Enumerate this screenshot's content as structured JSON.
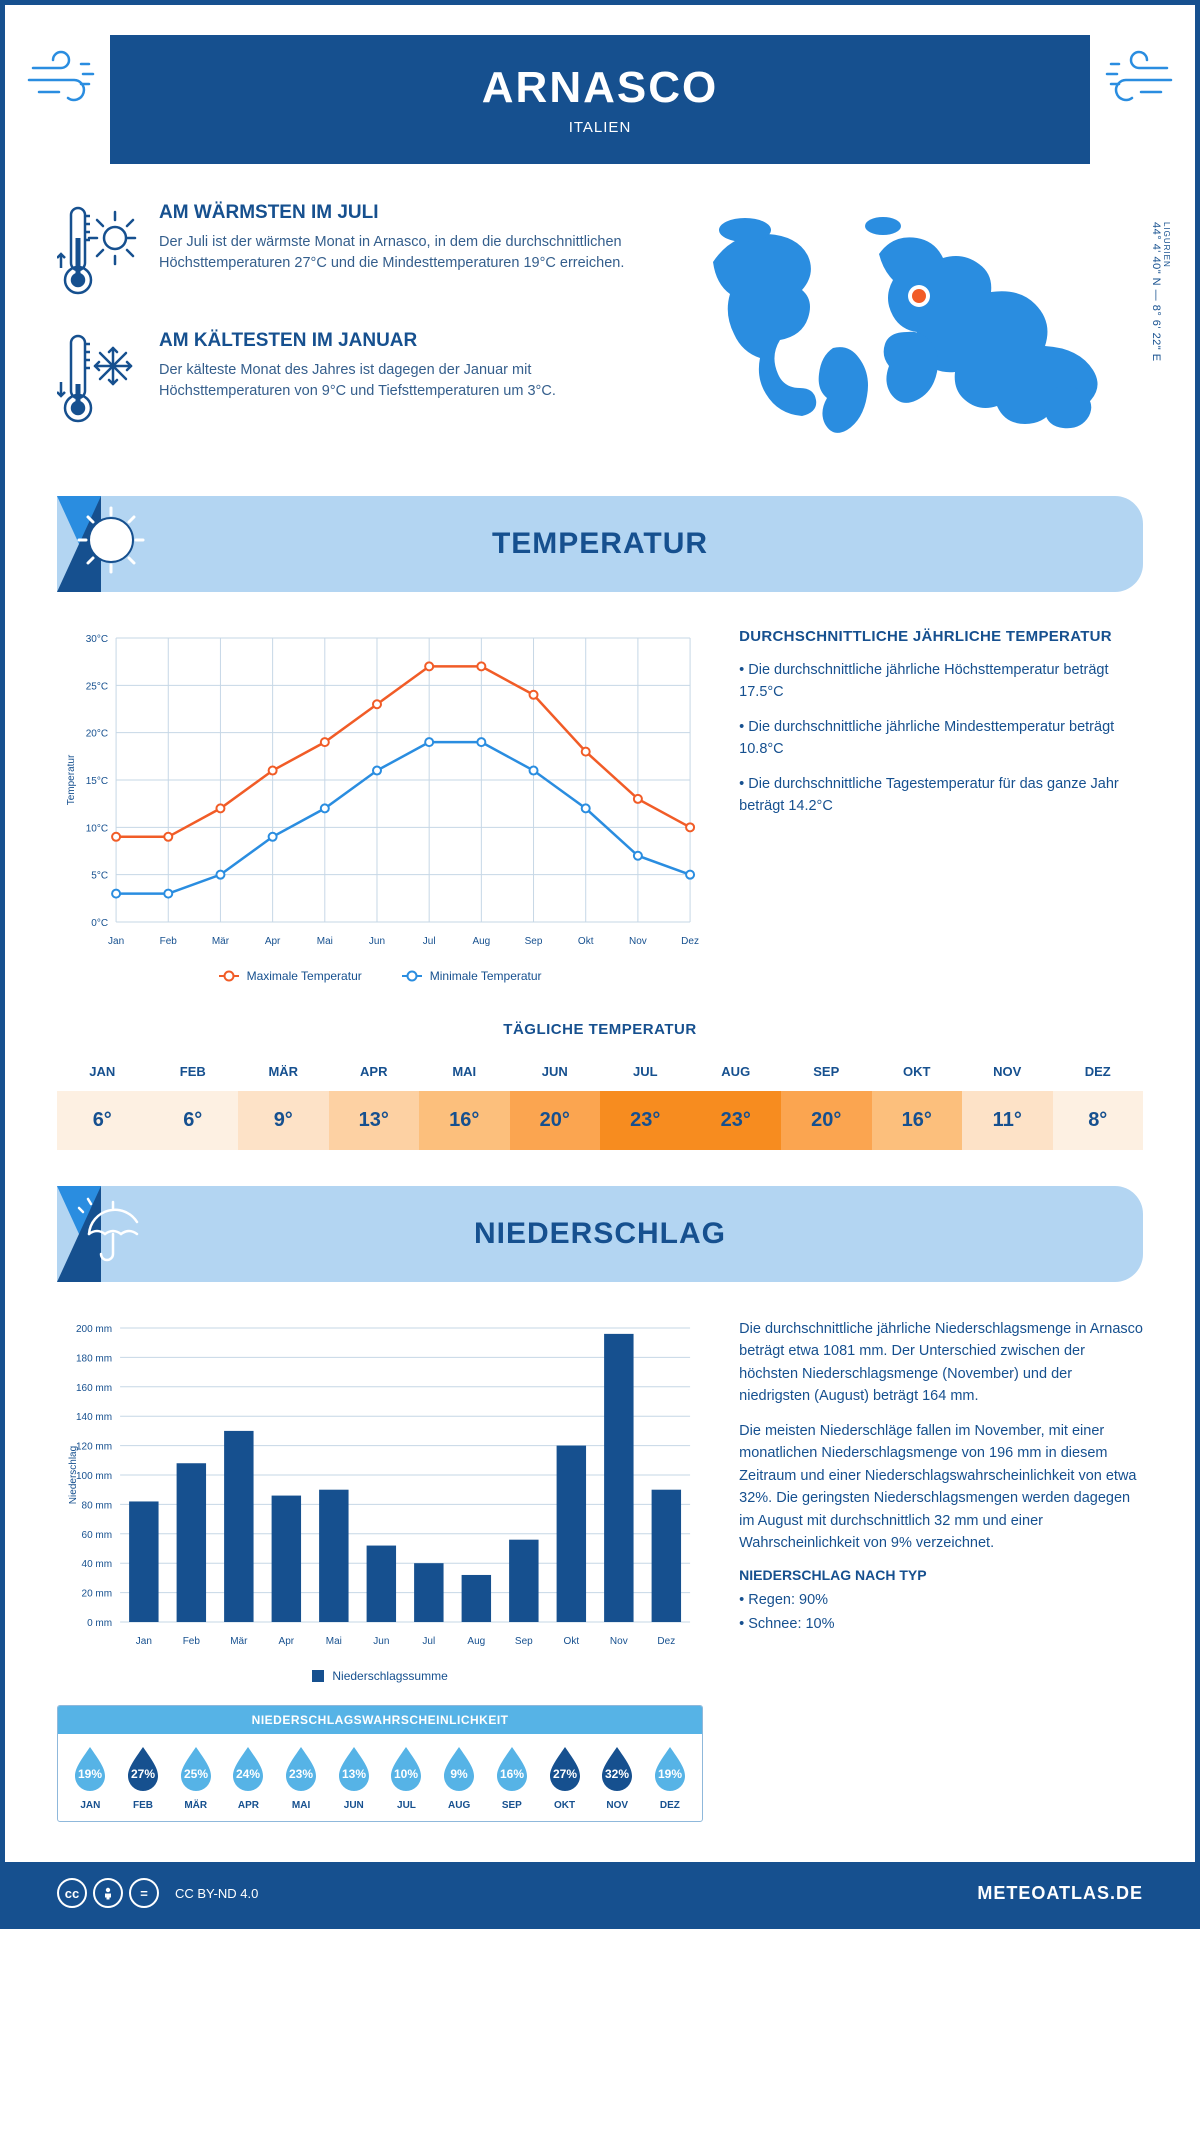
{
  "header": {
    "city": "ARNASCO",
    "country": "ITALIEN",
    "coords": "44° 4' 40\" N — 8° 6' 22\" E",
    "region": "LIGURIEN"
  },
  "facts": {
    "warm": {
      "title": "AM WÄRMSTEN IM JULI",
      "text": "Der Juli ist der wärmste Monat in Arnasco, in dem die durchschnittlichen Höchsttemperaturen 27°C und die Mindesttemperaturen 19°C erreichen."
    },
    "cold": {
      "title": "AM KÄLTESTEN IM JANUAR",
      "text": "Der kälteste Monat des Jahres ist dagegen der Januar mit Höchsttemperaturen von 9°C und Tiefsttemperaturen um 3°C."
    }
  },
  "sections": {
    "temp": "TEMPERATUR",
    "precip": "NIEDERSCHLAG"
  },
  "temp_chart": {
    "months": [
      "Jan",
      "Feb",
      "Mär",
      "Apr",
      "Mai",
      "Jun",
      "Jul",
      "Aug",
      "Sep",
      "Okt",
      "Nov",
      "Dez"
    ],
    "max_values": [
      9,
      9,
      12,
      16,
      19,
      23,
      27,
      27,
      24,
      18,
      13,
      10
    ],
    "min_values": [
      3,
      3,
      5,
      9,
      12,
      16,
      19,
      19,
      16,
      12,
      7,
      5
    ],
    "max_color": "#f15c27",
    "min_color": "#2a8de0",
    "ylim": [
      0,
      30
    ],
    "ytick_step": 5,
    "ytick_suffix": "°C",
    "y_axis_title": "Temperatur",
    "grid_color": "#c6d7e6",
    "legend_max": "Maximale Temperatur",
    "legend_min": "Minimale Temperatur"
  },
  "temp_side": {
    "title": "DURCHSCHNITTLICHE JÄHRLICHE TEMPERATUR",
    "b1": "• Die durchschnittliche jährliche Höchsttemperatur beträgt 17.5°C",
    "b2": "• Die durchschnittliche jährliche Mindesttemperatur beträgt 10.8°C",
    "b3": "• Die durchschnittliche Tagestemperatur für das ganze Jahr beträgt 14.2°C"
  },
  "daily_temp": {
    "title": "TÄGLICHE TEMPERATUR",
    "months": [
      "JAN",
      "FEB",
      "MÄR",
      "APR",
      "MAI",
      "JUN",
      "JUL",
      "AUG",
      "SEP",
      "OKT",
      "NOV",
      "DEZ"
    ],
    "values": [
      "6°",
      "6°",
      "9°",
      "13°",
      "16°",
      "20°",
      "23°",
      "23°",
      "20°",
      "16°",
      "11°",
      "8°"
    ],
    "colors": [
      "#fdf0e2",
      "#fdf0e2",
      "#fde2c7",
      "#fdd1a3",
      "#fcbf7c",
      "#fba550",
      "#f78c1f",
      "#f78c1f",
      "#fba550",
      "#fcbf7c",
      "#fde2c7",
      "#fdf0e2"
    ]
  },
  "precip_chart": {
    "months": [
      "Jan",
      "Feb",
      "Mär",
      "Apr",
      "Mai",
      "Jun",
      "Jul",
      "Aug",
      "Sep",
      "Okt",
      "Nov",
      "Dez"
    ],
    "values": [
      82,
      108,
      130,
      86,
      90,
      52,
      40,
      32,
      56,
      120,
      196,
      90
    ],
    "bar_color": "#16508f",
    "ylim": [
      0,
      200
    ],
    "ytick_step": 20,
    "ytick_suffix": " mm",
    "y_axis_title": "Niederschlag",
    "grid_color": "#c6d7e6",
    "legend": "Niederschlagssumme"
  },
  "precip_side": {
    "p1": "Die durchschnittliche jährliche Niederschlagsmenge in Arnasco beträgt etwa 1081 mm. Der Unterschied zwischen der höchsten Niederschlagsmenge (November) und der niedrigsten (August) beträgt 164 mm.",
    "p2": "Die meisten Niederschläge fallen im November, mit einer monatlichen Niederschlagsmenge von 196 mm in diesem Zeitraum und einer Niederschlagswahrscheinlichkeit von etwa 32%. Die geringsten Niederschlagsmengen werden dagegen im August mit durchschnittlich 32 mm und einer Wahrscheinlichkeit von 9% verzeichnet.",
    "type_title": "NIEDERSCHLAG NACH TYP",
    "type_1": "• Regen: 90%",
    "type_2": "• Schnee: 10%"
  },
  "precip_prob": {
    "title": "NIEDERSCHLAGSWAHRSCHEINLICHKEIT",
    "months": [
      "JAN",
      "FEB",
      "MÄR",
      "APR",
      "MAI",
      "JUN",
      "JUL",
      "AUG",
      "SEP",
      "OKT",
      "NOV",
      "DEZ"
    ],
    "values": [
      "19%",
      "27%",
      "25%",
      "24%",
      "23%",
      "13%",
      "10%",
      "9%",
      "16%",
      "27%",
      "32%",
      "19%"
    ],
    "light_color": "#56b3e6",
    "dark_color": "#16508f",
    "dark_indices": [
      1,
      9,
      10
    ]
  },
  "footer": {
    "license": "CC BY-ND 4.0",
    "site": "METEOATLAS.DE"
  }
}
